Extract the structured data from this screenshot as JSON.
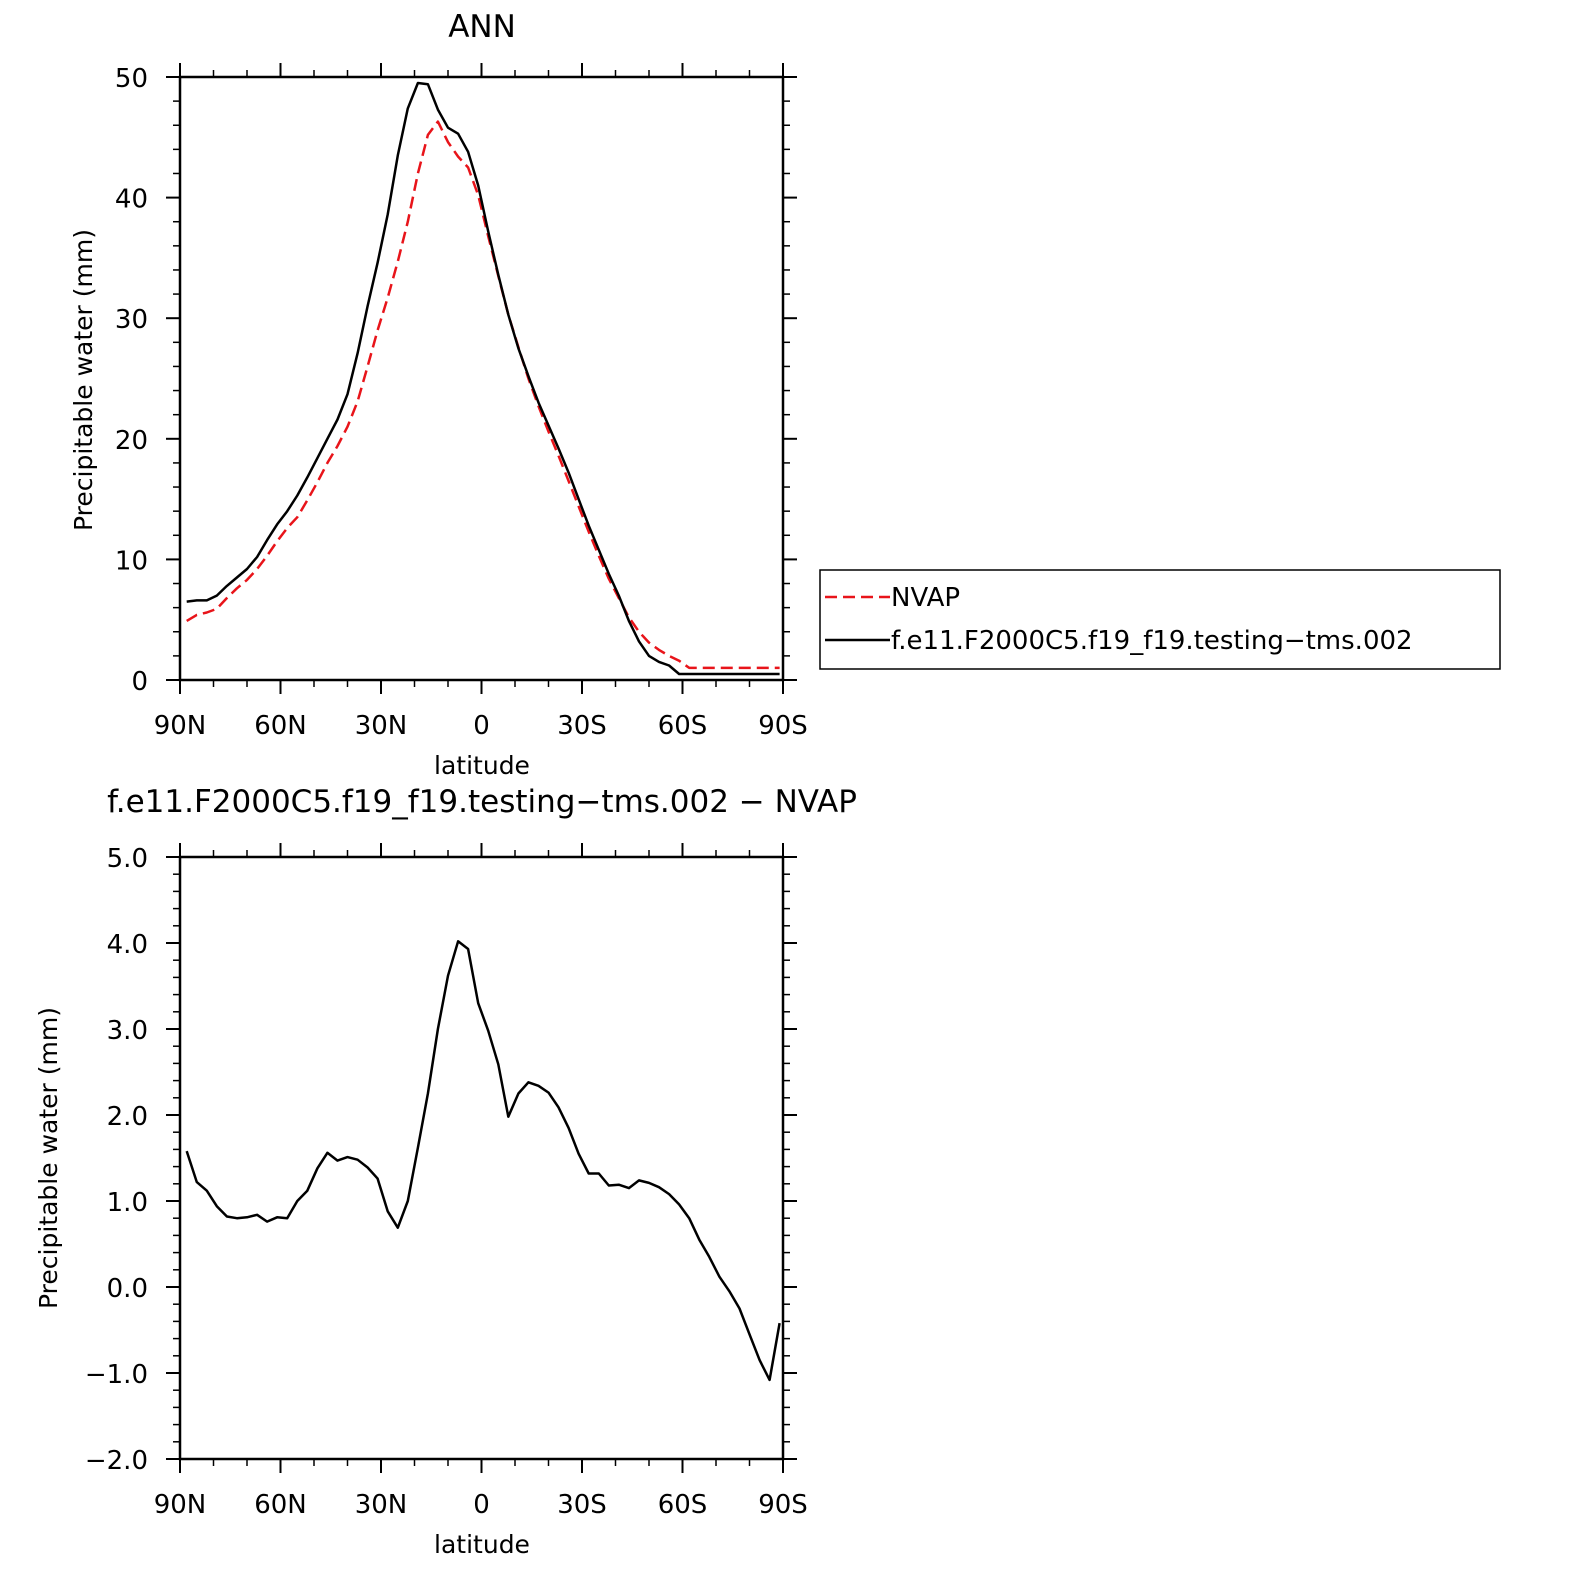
{
  "chart_data": [
    {
      "type": "line",
      "title": "ANN",
      "xlabel": "latitude",
      "ylabel": "Precipitable water (mm)",
      "xlim": [
        -90,
        90
      ],
      "ylim": [
        0,
        50
      ],
      "x_ticks": [
        -90,
        -60,
        -30,
        0,
        30,
        60,
        90
      ],
      "x_tick_labels": [
        "90N",
        "60N",
        "30N",
        "0",
        "30S",
        "60S",
        "90S"
      ],
      "y_ticks": [
        0,
        10,
        20,
        30,
        40,
        50
      ],
      "y_tick_labels": [
        "0",
        "10",
        "20",
        "30",
        "40",
        "50"
      ],
      "grid": false,
      "legend_position": "right",
      "x": [
        -88,
        -85,
        -82,
        -79,
        -76,
        -73,
        -70,
        -67,
        -64,
        -61,
        -58,
        -55,
        -52,
        -49,
        -46,
        -43,
        -40,
        -37,
        -34,
        -31,
        -28,
        -25,
        -22,
        -19,
        -16,
        -13,
        -10,
        -7,
        -4,
        -1,
        2,
        5,
        8,
        11,
        14,
        17,
        20,
        23,
        26,
        29,
        32,
        35,
        38,
        41,
        44,
        47,
        50,
        53,
        56,
        59,
        62,
        65,
        68,
        71,
        74,
        77,
        80,
        83,
        86,
        89
      ],
      "series": [
        {
          "name": "NVAP",
          "color": "#e8141a",
          "dash": "dashed",
          "values": [
            4.9,
            5.4,
            5.6,
            5.9,
            6.8,
            7.6,
            8.3,
            9.2,
            10.3,
            11.5,
            12.6,
            13.5,
            14.9,
            16.4,
            18.0,
            19.4,
            21.0,
            23.1,
            26.0,
            29.0,
            31.7,
            34.7,
            38.0,
            42.0,
            45.2,
            46.3,
            44.6,
            43.4,
            42.5,
            40.2,
            36.8,
            33.5,
            30.3,
            27.6,
            25.0,
            22.7,
            20.6,
            18.6,
            16.5,
            14.4,
            12.3,
            10.3,
            8.4,
            6.8,
            5.2,
            4.0,
            3.1,
            2.5,
            2.0,
            1.6,
            1.0,
            1.0,
            1.0,
            1.0,
            1.0,
            1.0,
            1.0,
            1.0,
            1.0,
            1.0
          ]
        },
        {
          "name": "f.e11.F2000C5.f19_f19.testing−tms.002",
          "color": "#000000",
          "dash": "solid",
          "values": [
            6.5,
            6.6,
            6.6,
            7.0,
            7.8,
            8.5,
            9.2,
            10.2,
            11.6,
            12.9,
            14.0,
            15.3,
            16.8,
            18.4,
            20.0,
            21.6,
            23.7,
            27.1,
            31.0,
            34.6,
            38.6,
            43.5,
            47.4,
            49.5,
            49.4,
            47.3,
            45.8,
            45.3,
            43.8,
            41.0,
            37.2,
            33.6,
            30.3,
            27.5,
            25.2,
            23.0,
            21.1,
            19.2,
            17.2,
            15.0,
            12.8,
            10.8,
            8.8,
            7.0,
            4.9,
            3.2,
            2.0,
            1.5,
            1.2,
            0.5,
            0.5,
            0.5,
            0.5,
            0.5,
            0.5,
            0.5,
            0.5,
            0.5,
            0.5,
            0.5
          ]
        }
      ]
    },
    {
      "type": "line",
      "title": "f.e11.F2000C5.f19_f19.testing−tms.002 − NVAP",
      "xlabel": "latitude",
      "ylabel": "Precipitable water (mm)",
      "xlim": [
        -90,
        90
      ],
      "ylim": [
        -2.0,
        5.0
      ],
      "x_ticks": [
        -90,
        -60,
        -30,
        0,
        30,
        60,
        90
      ],
      "x_tick_labels": [
        "90N",
        "60N",
        "30N",
        "0",
        "30S",
        "60S",
        "90S"
      ],
      "y_ticks": [
        -2.0,
        -1.0,
        0.0,
        1.0,
        2.0,
        3.0,
        4.0,
        5.0
      ],
      "y_tick_labels": [
        "−2.0",
        "−1.0",
        "0.0",
        "1.0",
        "2.0",
        "3.0",
        "4.0",
        "5.0"
      ],
      "grid": false,
      "x": [
        -88,
        -85,
        -82,
        -79,
        -76,
        -73,
        -70,
        -67,
        -64,
        -61,
        -58,
        -55,
        -52,
        -49,
        -46,
        -43,
        -40,
        -37,
        -34,
        -31,
        -28,
        -25,
        -22,
        -19,
        -16,
        -13,
        -10,
        -7,
        -4,
        -1,
        2,
        5,
        8,
        11,
        14,
        17,
        20,
        23,
        26,
        29,
        32,
        35,
        38,
        41,
        44,
        47,
        50,
        53,
        56,
        59,
        62,
        65,
        68,
        71,
        74,
        77,
        80,
        83,
        86,
        89
      ],
      "series": [
        {
          "color": "#000000",
          "dash": "solid",
          "values": [
            1.58,
            1.22,
            1.12,
            0.94,
            0.82,
            0.8,
            0.81,
            0.84,
            0.76,
            0.81,
            0.8,
            1.0,
            1.12,
            1.38,
            1.56,
            1.47,
            1.51,
            1.48,
            1.39,
            1.26,
            0.88,
            0.69,
            1.0,
            1.62,
            2.25,
            3.0,
            3.62,
            4.02,
            3.93,
            3.3,
            2.98,
            2.59,
            1.98,
            2.25,
            2.38,
            2.34,
            2.26,
            2.09,
            1.85,
            1.55,
            1.32,
            1.32,
            1.18,
            1.19,
            1.15,
            1.24,
            1.21,
            1.16,
            1.08,
            0.96,
            0.8,
            0.55,
            0.35,
            0.12,
            -0.05,
            -0.25,
            -0.55,
            -0.85,
            -1.08,
            -0.42
          ]
        }
      ]
    }
  ]
}
